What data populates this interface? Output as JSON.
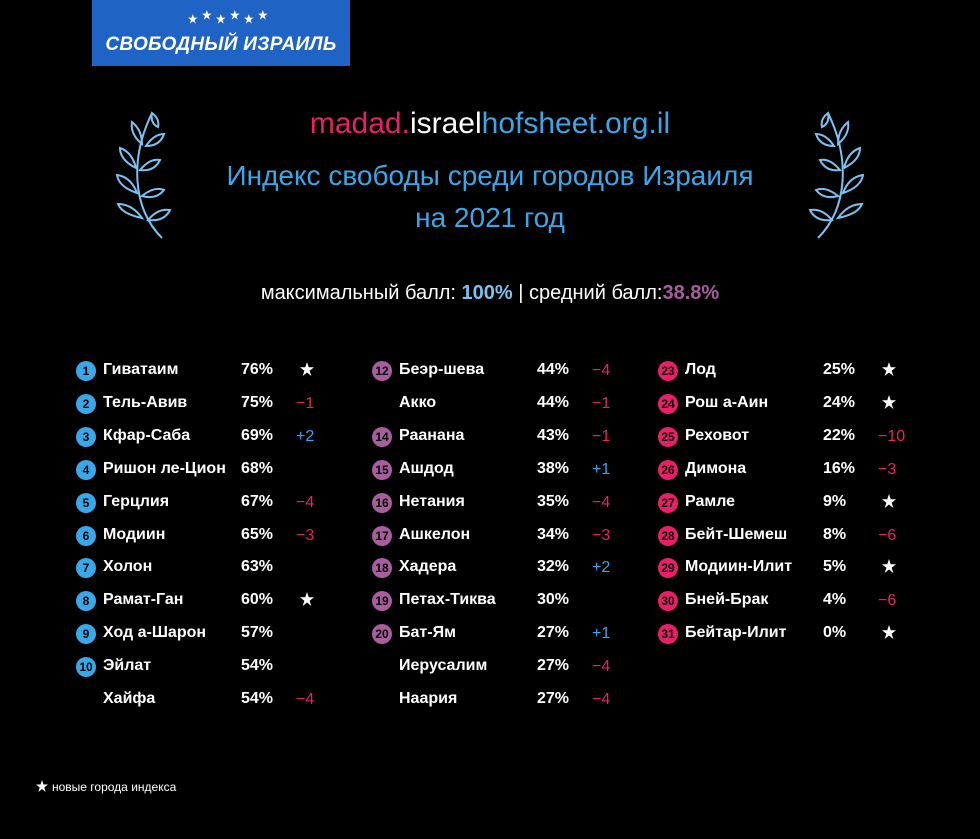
{
  "logo": {
    "text": "СВОБОДНЫЙ ИЗРАИЛЬ"
  },
  "header": {
    "url_part1": "madad.",
    "url_part2": "israel",
    "url_part3": "hofsheet.org.il",
    "title_line1": "Индекс свободы среди городов Израиля",
    "title_line2": "на 2021 год"
  },
  "stats": {
    "max_label": "максимальный балл:",
    "max_value": "100%",
    "separator": "|",
    "avg_label": "средний балл:",
    "avg_value": "38.8%"
  },
  "colors": {
    "blue": "#3aa7e9",
    "pink": "#ea1f6a",
    "purple": "#a85d9e",
    "logo_bg": "#1f63c4"
  },
  "columns": [
    {
      "rank_color": "#3aa7e9",
      "rows": [
        {
          "rank": "1",
          "name": "Гиватаим",
          "score": "76%",
          "delta": "",
          "new": true
        },
        {
          "rank": "2",
          "name": "Тель-Авив",
          "score": "75%",
          "delta": "−1",
          "new": false
        },
        {
          "rank": "3",
          "name": "Кфар-Саба",
          "score": "69%",
          "delta": "+2",
          "new": false
        },
        {
          "rank": "4",
          "name": "Ришон ле-Цион",
          "score": "68%",
          "delta": "",
          "new": false
        },
        {
          "rank": "5",
          "name": "Герцлия",
          "score": "67%",
          "delta": "−4",
          "new": false
        },
        {
          "rank": "6",
          "name": "Модиин",
          "score": "65%",
          "delta": "−3",
          "new": false
        },
        {
          "rank": "7",
          "name": "Холон",
          "score": "63%",
          "delta": "",
          "new": false
        },
        {
          "rank": "8",
          "name": "Рамат-Ган",
          "score": "60%",
          "delta": "",
          "new": true
        },
        {
          "rank": "9",
          "name": "Ход а-Шарон",
          "score": "57%",
          "delta": "",
          "new": false
        },
        {
          "rank": "10",
          "name": "Эйлат",
          "score": "54%",
          "delta": "",
          "new": false
        },
        {
          "rank": "",
          "name": "Хайфа",
          "score": "54%",
          "delta": "−4",
          "new": false
        }
      ]
    },
    {
      "rank_color": "#a85d9e",
      "rows": [
        {
          "rank": "12",
          "name": "Беэр-шева",
          "score": "44%",
          "delta": "−4",
          "new": false
        },
        {
          "rank": "",
          "name": "Акко",
          "score": "44%",
          "delta": "−1",
          "new": false
        },
        {
          "rank": "14",
          "name": "Раанана",
          "score": "43%",
          "delta": "−1",
          "new": false
        },
        {
          "rank": "15",
          "name": "Ашдод",
          "score": "38%",
          "delta": "+1",
          "new": false
        },
        {
          "rank": "16",
          "name": "Нетания",
          "score": "35%",
          "delta": "−4",
          "new": false
        },
        {
          "rank": "17",
          "name": "Ашкелон",
          "score": "34%",
          "delta": "−3",
          "new": false
        },
        {
          "rank": "18",
          "name": "Хадера",
          "score": "32%",
          "delta": "+2",
          "new": false
        },
        {
          "rank": "19",
          "name": "Петах-Тиква",
          "score": "30%",
          "delta": "",
          "new": false
        },
        {
          "rank": "20",
          "name": "Бат-Ям",
          "score": "27%",
          "delta": "+1",
          "new": false
        },
        {
          "rank": "",
          "name": "Иерусалим",
          "score": "27%",
          "delta": "−4",
          "new": false
        },
        {
          "rank": "",
          "name": "Наария",
          "score": "27%",
          "delta": "−4",
          "new": false
        }
      ]
    },
    {
      "rank_color": "#ea1f6a",
      "rows": [
        {
          "rank": "23",
          "name": "Лод",
          "score": "25%",
          "delta": "",
          "new": true
        },
        {
          "rank": "24",
          "name": "Рош а-Аин",
          "score": "24%",
          "delta": "",
          "new": true
        },
        {
          "rank": "25",
          "name": "Реховот",
          "score": "22%",
          "delta": "−10",
          "new": false
        },
        {
          "rank": "26",
          "name": "Димона",
          "score": "16%",
          "delta": "−3",
          "new": false
        },
        {
          "rank": "27",
          "name": "Рамле",
          "score": "9%",
          "delta": "",
          "new": true
        },
        {
          "rank": "28",
          "name": "Бейт-Шемеш",
          "score": "8%",
          "delta": "−6",
          "new": false
        },
        {
          "rank": "29",
          "name": "Модиин-Илит",
          "score": "5%",
          "delta": "",
          "new": true
        },
        {
          "rank": "30",
          "name": "Бней-Брак",
          "score": "4%",
          "delta": "−6",
          "new": false
        },
        {
          "rank": "31",
          "name": "Бейтар-Илит",
          "score": "0%",
          "delta": "",
          "new": true
        }
      ]
    }
  ],
  "legend": {
    "icon": "star-icon",
    "text": "новые города индекса"
  }
}
